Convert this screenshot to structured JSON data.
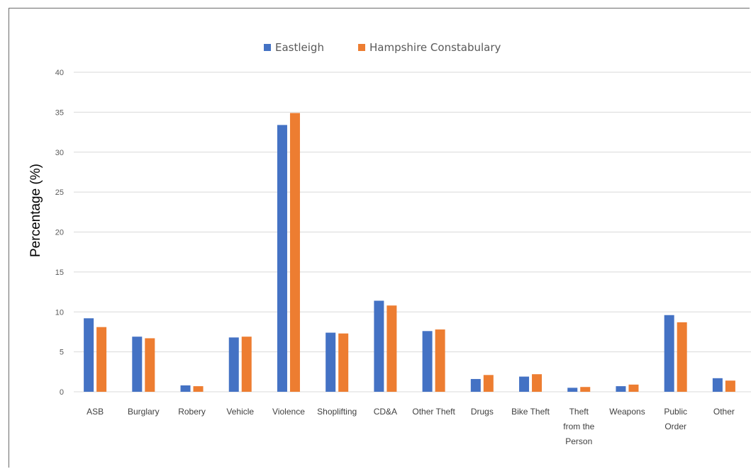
{
  "colors": {
    "eastleigh": "#4472c4",
    "hampshire": "#ed7d31"
  },
  "chart_data": {
    "type": "bar",
    "title": "",
    "xlabel": "",
    "ylabel": "Percentage (%)",
    "ylim": [
      0,
      40
    ],
    "yticks": [
      0,
      5,
      10,
      15,
      20,
      25,
      30,
      35,
      40
    ],
    "grid": true,
    "legend_position": "top",
    "categories": [
      "ASB",
      "Burglary",
      "Robery",
      "Vehicle",
      "Violence",
      "Shoplifting",
      "CD&A",
      "Other Theft",
      "Drugs",
      "Bike Theft",
      "Theft from the Person",
      "Weapons",
      "Public Order",
      "Other"
    ],
    "category_lines": [
      [
        "ASB"
      ],
      [
        "Burglary"
      ],
      [
        "Robery"
      ],
      [
        "Vehicle"
      ],
      [
        "Violence"
      ],
      [
        "Shoplifting"
      ],
      [
        "CD&A"
      ],
      [
        "Other Theft"
      ],
      [
        "Drugs"
      ],
      [
        "Bike Theft"
      ],
      [
        "Theft",
        "from the",
        "Person"
      ],
      [
        "Weapons"
      ],
      [
        "Public",
        "Order"
      ],
      [
        "Other"
      ]
    ],
    "series": [
      {
        "name": "Eastleigh",
        "values": [
          9.2,
          6.9,
          0.8,
          6.8,
          33.4,
          7.4,
          11.4,
          7.6,
          1.6,
          1.9,
          0.5,
          0.7,
          9.6,
          1.7
        ]
      },
      {
        "name": "Hampshire Constabulary",
        "values": [
          8.1,
          6.7,
          0.7,
          6.9,
          34.9,
          7.3,
          10.8,
          7.8,
          2.1,
          2.2,
          0.6,
          0.9,
          8.7,
          1.4
        ]
      }
    ]
  }
}
